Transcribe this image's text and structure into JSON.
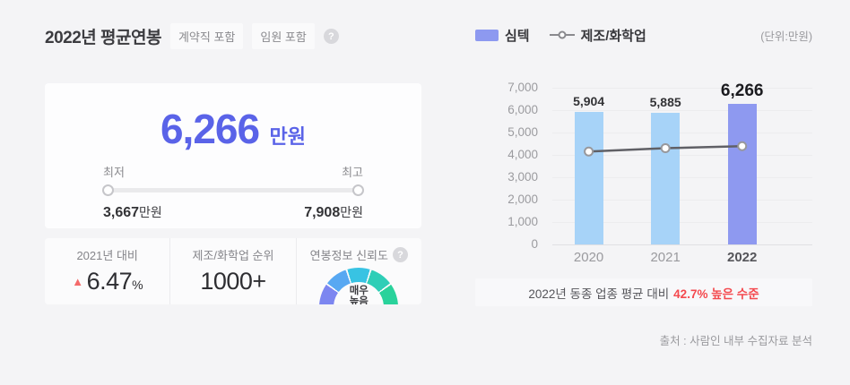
{
  "colors": {
    "page_bg": "#f4f4f6",
    "accent_blue": "#5a63e8",
    "alert_red": "#f4494e",
    "rise_red": "#f46a6a"
  },
  "help_symbol": "?",
  "header": {
    "title": "2022년 평균연봉",
    "badges": [
      "계약직 포함",
      "임원 포함"
    ]
  },
  "salary_card": {
    "average_value": "6,266",
    "average_unit": "만원",
    "min_label": "최저",
    "max_label": "최고",
    "min_value": "3,667",
    "min_unit": "만원",
    "max_value": "7,908",
    "max_unit": "만원"
  },
  "stats": {
    "yoy": {
      "label": "2021년 대비",
      "direction_symbol": "▲",
      "value": "6.47",
      "suffix": "%"
    },
    "rank": {
      "label": "제조/화학업 순위",
      "value": "1000+"
    },
    "reliability": {
      "label": "연봉정보 신뢰도",
      "gauge": {
        "level": "매우 높음",
        "lines": [
          "매우",
          "높음"
        ],
        "colors": [
          "#7c86f0",
          "#58a8f2",
          "#38c3e3",
          "#2fceb7",
          "#29d29b"
        ]
      }
    }
  },
  "chart_data": {
    "type": "bar",
    "title": "",
    "categories": [
      "2020",
      "2021",
      "2022"
    ],
    "series": [
      {
        "name": "심텍",
        "type": "bar",
        "values": [
          5904,
          5885,
          6266
        ],
        "labels": [
          "5,904",
          "5,885",
          "6,266"
        ],
        "colors": [
          "#a7d3f8",
          "#a7d3f8",
          "#8e99f0"
        ]
      },
      {
        "name": "제조/화학업",
        "type": "line",
        "values": [
          4150,
          4300,
          4391
        ],
        "estimated": true,
        "line_color": "#606066",
        "marker": "open-circle"
      }
    ],
    "highlight_index": 2,
    "ylim": [
      0,
      7000
    ],
    "ytick_step": 1000,
    "yticks": [
      "0",
      "1,000",
      "2,000",
      "3,000",
      "4,000",
      "5,000",
      "6,000",
      "7,000"
    ],
    "grid": true,
    "legend_position": "top",
    "legend": [
      {
        "name": "심텍",
        "swatch_color": "#8d99f0",
        "type": "bar"
      },
      {
        "name": "제조/화학업",
        "type": "line"
      }
    ],
    "unit_label": "(단위:만원)"
  },
  "caption": {
    "prefix": "2022년 동종 업종 평균 대비",
    "highlight": "42.7% 높은 수준"
  },
  "source": "출처 : 사람인 내부 수집자료 분석"
}
